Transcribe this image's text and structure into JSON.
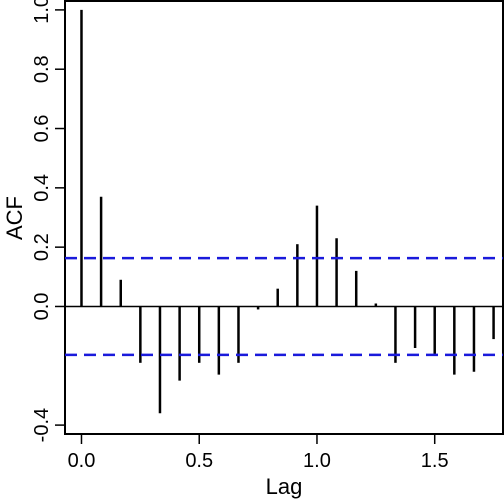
{
  "chart_data": {
    "type": "bar",
    "title": "",
    "xlabel": "Lag",
    "ylabel": "ACF",
    "xlim": [
      -0.07,
      1.79
    ],
    "ylim": [
      -0.4,
      1.0
    ],
    "x_ticks": [
      0.0,
      0.5,
      1.0,
      1.5
    ],
    "x_tick_labels": [
      "0.0",
      "0.5",
      "1.0",
      "1.5"
    ],
    "y_ticks": [
      -0.4,
      0.0,
      0.2,
      0.4,
      0.6,
      0.8,
      1.0
    ],
    "y_tick_labels": [
      "-0.4",
      "0.0",
      "0.2",
      "0.4",
      "0.6",
      "0.8",
      "1.0"
    ],
    "grid": false,
    "zero_line": true,
    "confidence_bounds": {
      "upper": 0.163,
      "lower": -0.163,
      "color": "#1a1adb",
      "style": "dashed"
    },
    "bar_color": "#000000",
    "series": [
      {
        "x": [
          0.0,
          0.0833,
          0.1667,
          0.25,
          0.3333,
          0.4167,
          0.5,
          0.5833,
          0.6667,
          0.75,
          0.8333,
          0.9167,
          1.0,
          1.0833,
          1.1667,
          1.25,
          1.3333,
          1.4167,
          1.5,
          1.5833,
          1.6667,
          1.75
        ],
        "values": [
          1.0,
          0.37,
          0.09,
          -0.19,
          -0.36,
          -0.25,
          -0.19,
          -0.23,
          -0.19,
          -0.01,
          0.06,
          0.21,
          0.34,
          0.23,
          0.12,
          0.01,
          -0.19,
          -0.14,
          -0.16,
          -0.23,
          -0.22,
          -0.11
        ]
      }
    ]
  }
}
